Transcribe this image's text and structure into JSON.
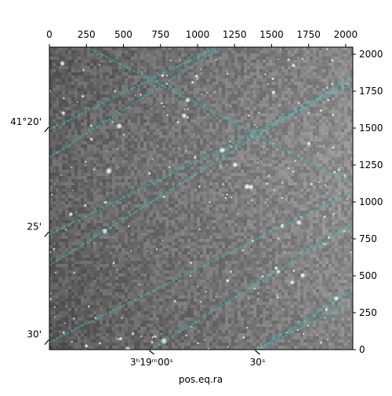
{
  "chart_data": {
    "type": "heatmap",
    "subtype": "astronomical-image-with-wcs-grid",
    "image": "grayscale star field",
    "title": "",
    "xlabel": "pos.eq.ra",
    "ylabel": "",
    "pixel_axes": {
      "x_range": [
        0,
        2048
      ],
      "y_range": [
        0,
        2048
      ],
      "x_ticks": [
        0,
        250,
        500,
        750,
        1000,
        1250,
        1500,
        1750,
        2000
      ],
      "y_ticks": [
        0,
        250,
        500,
        750,
        1000,
        1250,
        1500,
        1750,
        2000
      ]
    },
    "world_ticks": {
      "ra": [
        {
          "label": "3ʰ19ᵐ00ˢ",
          "x": 690
        },
        {
          "label": "30ˢ",
          "x": 1405
        }
      ],
      "dec": [
        {
          "label": "41°20'",
          "y": 1490
        },
        {
          "label": "25'",
          "y": 780
        },
        {
          "label": "30'",
          "y": 50
        }
      ]
    },
    "grid": {
      "color": "#00dddd",
      "lines_a": [
        [
          [
            0,
            1490
          ],
          [
            1130,
            2048
          ]
        ],
        [
          [
            0,
            780
          ],
          [
            2048,
            1800
          ]
        ],
        [
          [
            0,
            50
          ],
          [
            2048,
            1070
          ]
        ],
        [
          [
            1400,
            0
          ],
          [
            2048,
            320
          ]
        ]
      ],
      "lines_b": [
        [
          [
            260,
            2048
          ],
          [
            2048,
            1120
          ]
        ],
        [
          [
            0,
            1300
          ],
          [
            1160,
            2048
          ]
        ],
        [
          [
            0,
            570
          ],
          [
            2048,
            1850
          ]
        ],
        [
          [
            690,
            0
          ],
          [
            2048,
            850
          ]
        ],
        [
          [
            1405,
            0
          ],
          [
            2048,
            400
          ]
        ]
      ]
    }
  }
}
